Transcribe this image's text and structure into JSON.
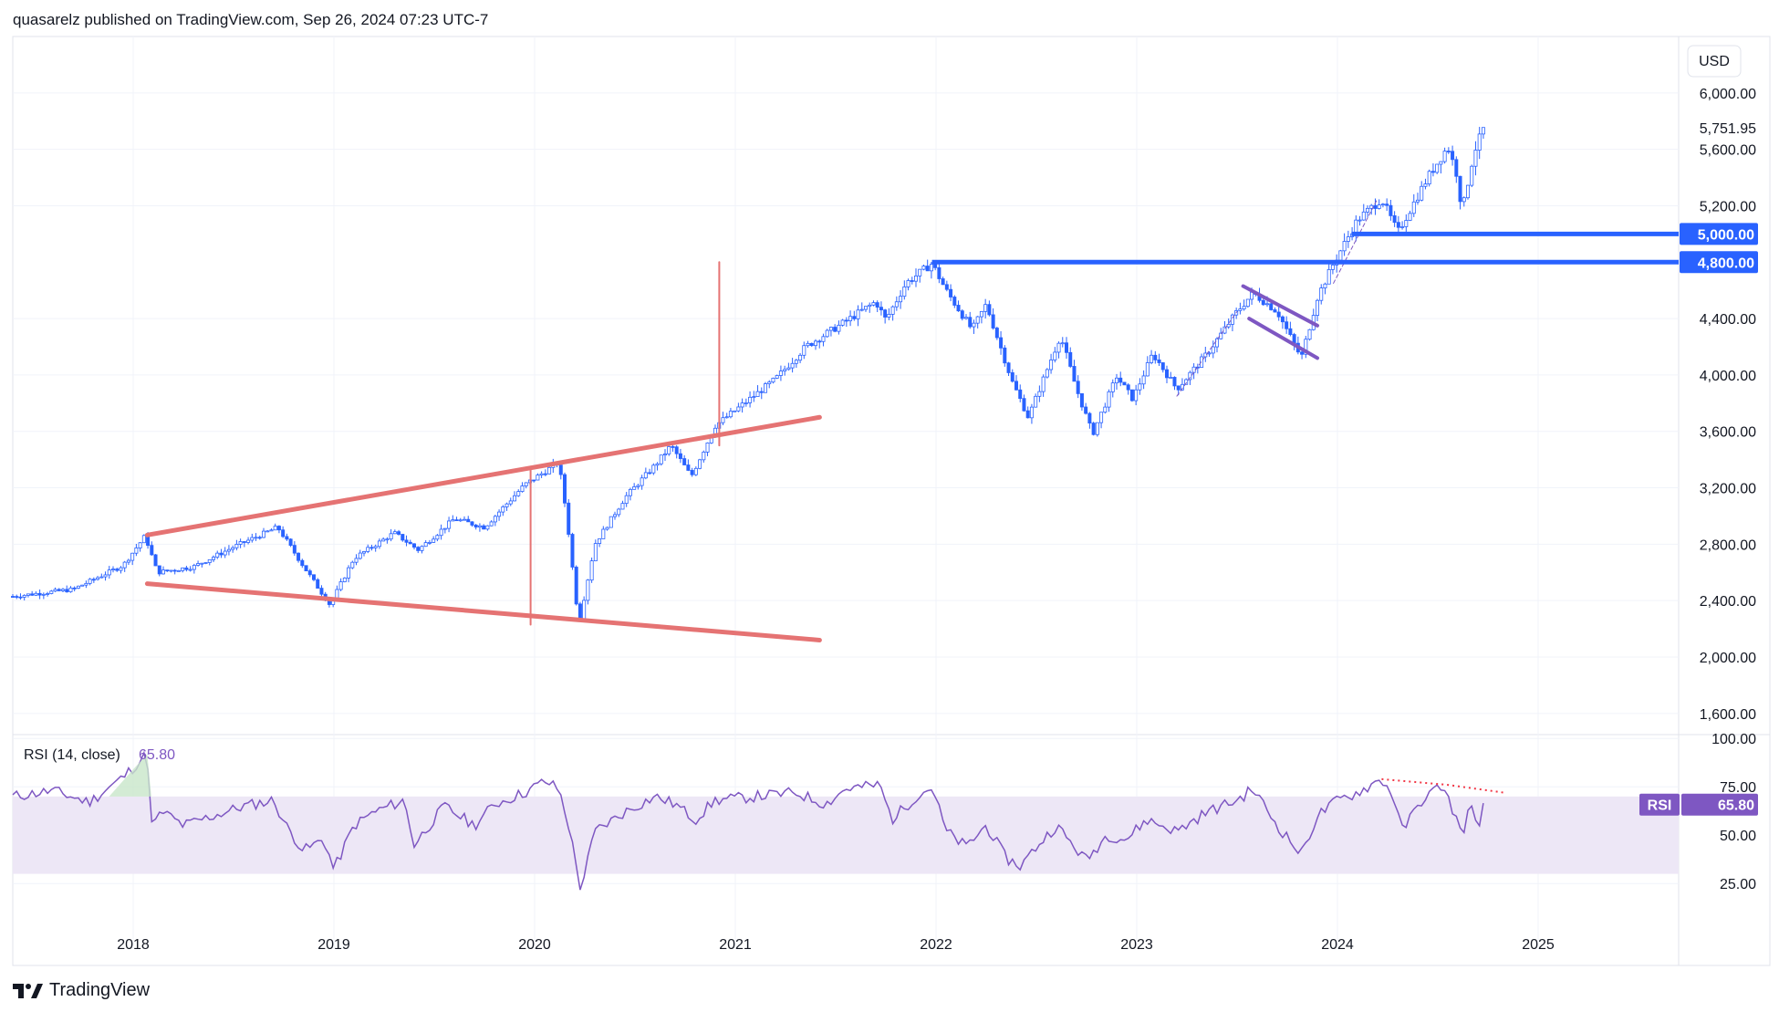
{
  "header": {
    "publisher_line": "quasarelz published on TradingView.com, Sep 26, 2024 07:23 UTC-7"
  },
  "footer": {
    "brand": "TradingView"
  },
  "currency_button": "USD",
  "colors": {
    "candle": "#2962ff",
    "wedge": "#e57373",
    "level": "#2962ff",
    "channel": "#7e57c2",
    "rsi_line": "#7e57c2",
    "rsi_band": "#ede7f6",
    "rsi_divergence": "#f23645",
    "grid": "#f0f3fa"
  },
  "chart_data": [
    {
      "type": "candlestick",
      "title": "",
      "y_ticks": [
        "6,000.00",
        "5,600.00",
        "5,200.00",
        "4,400.00",
        "4,000.00",
        "3,600.00",
        "3,200.00",
        "2,800.00",
        "2,400.00",
        "2,000.00",
        "1,600.00"
      ],
      "ylim": [
        1450,
        6400
      ],
      "x_ticks": [
        "2018",
        "2019",
        "2020",
        "2021",
        "2022",
        "2023",
        "2024",
        "2025"
      ],
      "xlim": [
        2017.4,
        2025.7
      ],
      "grid": true,
      "last_price": {
        "value": 5751.95,
        "label": "5,751.95"
      },
      "price_path": [
        [
          2017.4,
          2430
        ],
        [
          2017.7,
          2480
        ],
        [
          2017.95,
          2650
        ],
        [
          2018.06,
          2860
        ],
        [
          2018.12,
          2600
        ],
        [
          2018.3,
          2640
        ],
        [
          2018.5,
          2780
        ],
        [
          2018.72,
          2920
        ],
        [
          2018.85,
          2640
        ],
        [
          2018.98,
          2370
        ],
        [
          2019.1,
          2700
        ],
        [
          2019.3,
          2880
        ],
        [
          2019.42,
          2760
        ],
        [
          2019.6,
          2980
        ],
        [
          2019.75,
          2920
        ],
        [
          2019.95,
          3220
        ],
        [
          2020.12,
          3380
        ],
        [
          2020.16,
          3000
        ],
        [
          2020.22,
          2230
        ],
        [
          2020.3,
          2800
        ],
        [
          2020.45,
          3130
        ],
        [
          2020.6,
          3360
        ],
        [
          2020.68,
          3500
        ],
        [
          2020.78,
          3280
        ],
        [
          2020.9,
          3640
        ],
        [
          2021.0,
          3750
        ],
        [
          2021.2,
          3970
        ],
        [
          2021.35,
          4200
        ],
        [
          2021.55,
          4380
        ],
        [
          2021.7,
          4520
        ],
        [
          2021.75,
          4390
        ],
        [
          2021.85,
          4650
        ],
        [
          2021.98,
          4790
        ],
        [
          2022.05,
          4600
        ],
        [
          2022.18,
          4320
        ],
        [
          2022.25,
          4500
        ],
        [
          2022.38,
          3950
        ],
        [
          2022.46,
          3700
        ],
        [
          2022.62,
          4280
        ],
        [
          2022.7,
          3900
        ],
        [
          2022.78,
          3580
        ],
        [
          2022.9,
          3990
        ],
        [
          2022.98,
          3830
        ],
        [
          2023.08,
          4150
        ],
        [
          2023.2,
          3900
        ],
        [
          2023.35,
          4150
        ],
        [
          2023.5,
          4450
        ],
        [
          2023.58,
          4580
        ],
        [
          2023.7,
          4450
        ],
        [
          2023.82,
          4120
        ],
        [
          2023.9,
          4550
        ],
        [
          2023.98,
          4790
        ],
        [
          2024.1,
          5100
        ],
        [
          2024.22,
          5250
        ],
        [
          2024.3,
          5010
        ],
        [
          2024.45,
          5400
        ],
        [
          2024.55,
          5620
        ],
        [
          2024.6,
          5400
        ],
        [
          2024.62,
          5150
        ],
        [
          2024.68,
          5580
        ],
        [
          2024.73,
          5752
        ]
      ],
      "annotations": {
        "wedge_upper": [
          [
            2018.07,
            2865
          ],
          [
            2021.42,
            3700
          ]
        ],
        "wedge_lower": [
          [
            2018.07,
            2520
          ],
          [
            2021.42,
            2120
          ]
        ],
        "vertical_2020": [
          [
            2019.98,
            3350
          ],
          [
            2019.98,
            2230
          ]
        ],
        "vertical_2021": [
          [
            2020.92,
            4800
          ],
          [
            2020.92,
            3500
          ]
        ],
        "level_5000": {
          "value": 5000,
          "label": "5,000.00",
          "x_start": 2024.07
        },
        "level_4800": {
          "value": 4800,
          "label": "4,800.00",
          "x_start": 2021.98
        },
        "channel_upper": [
          [
            2023.53,
            4630
          ],
          [
            2023.9,
            4350
          ]
        ],
        "channel_lower": [
          [
            2023.56,
            4400
          ],
          [
            2023.9,
            4120
          ]
        ],
        "trend_dash_1": [
          [
            2023.2,
            3850
          ],
          [
            2023.5,
            4450
          ]
        ],
        "trend_dash_2": [
          [
            2023.98,
            4650
          ],
          [
            2024.2,
            5250
          ]
        ]
      }
    },
    {
      "type": "line",
      "title": "RSI (14, close)",
      "series": [
        {
          "name": "RSI",
          "last_value": "65.80"
        }
      ],
      "y_ticks": [
        "100.00",
        "75.00",
        "50.00",
        "25.00"
      ],
      "ylim": [
        10,
        102
      ],
      "band": [
        30,
        70
      ],
      "rsi_path": [
        [
          2017.4,
          70
        ],
        [
          2017.6,
          73
        ],
        [
          2017.78,
          67
        ],
        [
          2017.95,
          80
        ],
        [
          2018.05,
          90
        ],
        [
          2018.07,
          92
        ],
        [
          2018.09,
          55
        ],
        [
          2018.15,
          62
        ],
        [
          2018.25,
          55
        ],
        [
          2018.4,
          60
        ],
        [
          2018.55,
          65
        ],
        [
          2018.7,
          68
        ],
        [
          2018.76,
          55
        ],
        [
          2018.85,
          42
        ],
        [
          2018.95,
          48
        ],
        [
          2019.0,
          32
        ],
        [
          2019.1,
          55
        ],
        [
          2019.2,
          62
        ],
        [
          2019.35,
          68
        ],
        [
          2019.4,
          45
        ],
        [
          2019.55,
          65
        ],
        [
          2019.7,
          55
        ],
        [
          2019.8,
          66
        ],
        [
          2019.95,
          72
        ],
        [
          2020.05,
          78
        ],
        [
          2020.12,
          74
        ],
        [
          2020.17,
          55
        ],
        [
          2020.2,
          38
        ],
        [
          2020.23,
          22
        ],
        [
          2020.3,
          52
        ],
        [
          2020.45,
          62
        ],
        [
          2020.6,
          70
        ],
        [
          2020.7,
          66
        ],
        [
          2020.8,
          58
        ],
        [
          2020.9,
          68
        ],
        [
          2021.1,
          70
        ],
        [
          2021.3,
          72
        ],
        [
          2021.45,
          66
        ],
        [
          2021.55,
          74
        ],
        [
          2021.72,
          76
        ],
        [
          2021.78,
          58
        ],
        [
          2021.9,
          70
        ],
        [
          2021.98,
          75
        ],
        [
          2022.05,
          52
        ],
        [
          2022.15,
          44
        ],
        [
          2022.25,
          55
        ],
        [
          2022.35,
          38
        ],
        [
          2022.42,
          34
        ],
        [
          2022.5,
          44
        ],
        [
          2022.6,
          55
        ],
        [
          2022.68,
          45
        ],
        [
          2022.75,
          37
        ],
        [
          2022.85,
          50
        ],
        [
          2022.95,
          48
        ],
        [
          2023.05,
          58
        ],
        [
          2023.2,
          52
        ],
        [
          2023.35,
          62
        ],
        [
          2023.5,
          68
        ],
        [
          2023.58,
          74
        ],
        [
          2023.7,
          55
        ],
        [
          2023.78,
          45
        ],
        [
          2023.82,
          40
        ],
        [
          2023.9,
          60
        ],
        [
          2024.0,
          68
        ],
        [
          2024.1,
          72
        ],
        [
          2024.22,
          79
        ],
        [
          2024.28,
          70
        ],
        [
          2024.32,
          52
        ],
        [
          2024.42,
          68
        ],
        [
          2024.52,
          76
        ],
        [
          2024.58,
          62
        ],
        [
          2024.62,
          50
        ],
        [
          2024.66,
          65
        ],
        [
          2024.7,
          55
        ],
        [
          2024.73,
          65.8
        ]
      ],
      "divergence_line": [
        [
          2024.22,
          79
        ],
        [
          2024.55,
          76
        ],
        [
          2024.83,
          72
        ]
      ]
    }
  ]
}
